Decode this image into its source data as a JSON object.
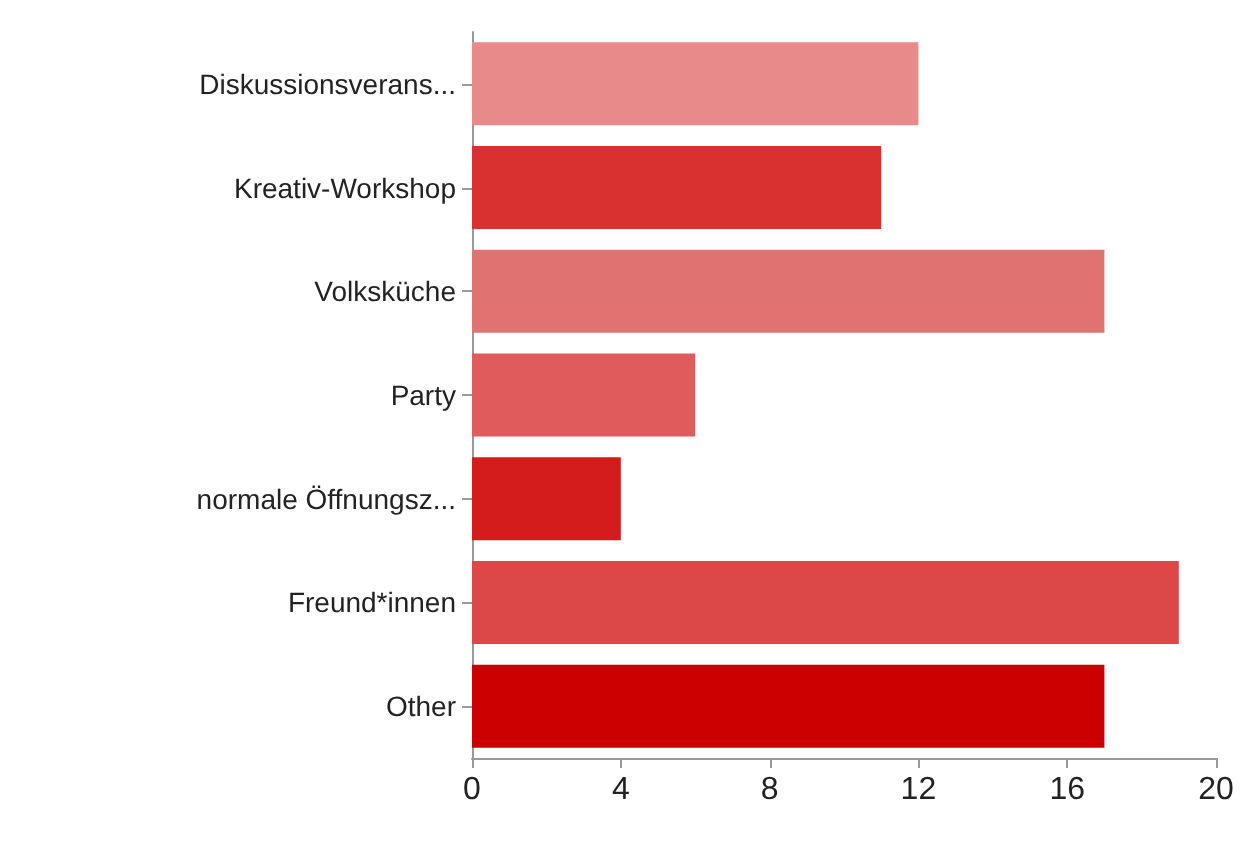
{
  "chart_data": {
    "type": "bar",
    "orientation": "horizontal",
    "categories": [
      "Diskussionsverans...",
      "Kreativ-Workshop",
      "Volksküche",
      "Party",
      "normale Öffnungsz...",
      "Freund*innen",
      "Other"
    ],
    "values": [
      12,
      11,
      17,
      6,
      4,
      19,
      17
    ],
    "colors": [
      "#e88a8a",
      "#d93030",
      "#e07272",
      "#e05c5c",
      "#d41c1c",
      "#dc4848",
      "#cc0000"
    ],
    "xlim": [
      0,
      20
    ],
    "xticks": [
      0,
      4,
      8,
      12,
      16,
      20
    ]
  }
}
